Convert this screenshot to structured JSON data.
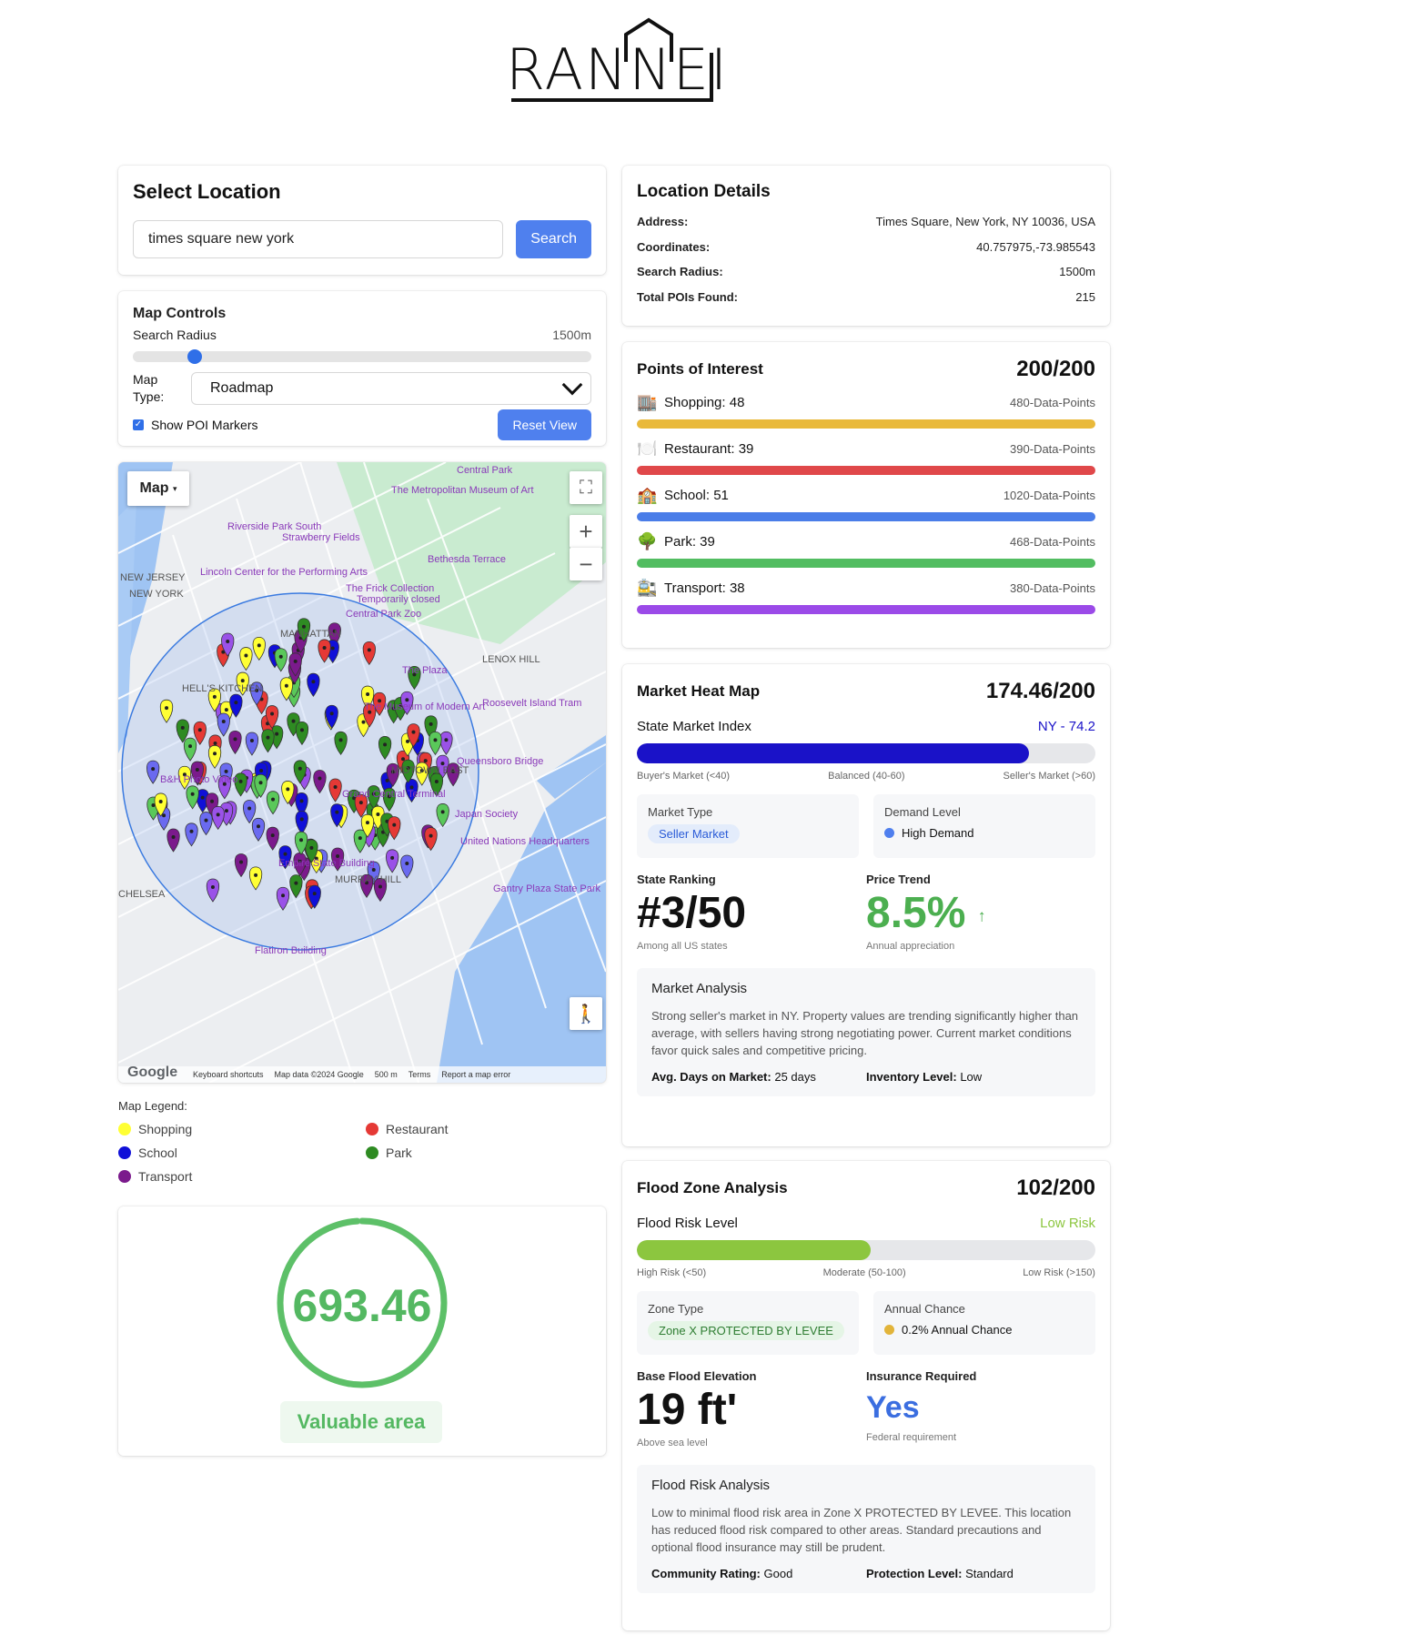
{
  "logo": {
    "text": "RANNEI"
  },
  "select_location": {
    "title": "Select Location",
    "search_value": "times square new york",
    "search_button": "Search"
  },
  "map_controls": {
    "title": "Map Controls",
    "radius_label": "Search Radius",
    "radius_value": "1500m",
    "radius_fraction": 0.12,
    "map_type_label": "Map Type:",
    "map_type_value": "Roadmap",
    "show_poi_label": "Show POI Markers",
    "show_poi_checked": true,
    "reset_button": "Reset View"
  },
  "map": {
    "type_button": "Map",
    "place_labels": [
      "Central Park",
      "The Metropolitan Museum of Art",
      "Riverside Park South",
      "Strawberry Fields",
      "Bethesda Terrace",
      "Lincoln Center for the Performing Arts",
      "The Frick Collection",
      "Temporarily closed",
      "Central Park Zoo",
      "MANHATTAN",
      "LENOX HILL",
      "HELL'S KITCHEN",
      "The Plaza",
      "Roosevelt Island Tram",
      "The Museum of Modern Art",
      "Queensboro Bridge",
      "MIDTOWN EAST",
      "B&H Photo Video",
      "Grand Central Terminal",
      "Japan Society",
      "United Nations Headquarters",
      "Empire State Building",
      "MURRAY HILL",
      "CHELSEA",
      "Gantry Plaza State Park",
      "Flatiron Building",
      "NEW JERSEY",
      "NEW YORK"
    ],
    "footer": {
      "google": "Google",
      "shortcuts": "Keyboard shortcuts",
      "data": "Map data ©2024 Google",
      "scale": "500 m",
      "terms": "Terms",
      "report": "Report a map error"
    }
  },
  "legend": {
    "title": "Map Legend:",
    "items": [
      {
        "label": "Shopping",
        "color": "#ffff33"
      },
      {
        "label": "Restaurant",
        "color": "#e53935"
      },
      {
        "label": "School",
        "color": "#1010d8"
      },
      {
        "label": "Park",
        "color": "#2e8b22"
      },
      {
        "label": "Transport",
        "color": "#7b1a8c"
      }
    ]
  },
  "score": {
    "value": "693.46",
    "fraction": 0.99,
    "label": "Valuable area"
  },
  "location_details": {
    "title": "Location Details",
    "rows": [
      {
        "key": "Address:",
        "value": "Times Square, New York, NY 10036, USA"
      },
      {
        "key": "Coordinates:",
        "value": "40.757975,-73.985543"
      },
      {
        "key": "Search Radius:",
        "value": "1500m"
      },
      {
        "key": "Total POIs Found:",
        "value": "215"
      }
    ]
  },
  "poi": {
    "title": "Points of Interest",
    "score": "200/200",
    "items": [
      {
        "icon": "🏬",
        "icon_name": "shopping-icon",
        "label": "Shopping: 48",
        "points": "480-Data-Points",
        "color": "#e9b93a"
      },
      {
        "icon": "🍽️",
        "icon_name": "restaurant-icon",
        "label": "Restaurant: 39",
        "points": "390-Data-Points",
        "color": "#e0484a"
      },
      {
        "icon": "🏫",
        "icon_name": "school-icon",
        "label": "School: 51",
        "points": "1020-Data-Points",
        "color": "#4a7de8"
      },
      {
        "icon": "🌳",
        "icon_name": "park-icon",
        "label": "Park: 39",
        "points": "468-Data-Points",
        "color": "#52bd61"
      },
      {
        "icon": "🚉",
        "icon_name": "transport-icon",
        "label": "Transport: 38",
        "points": "380-Data-Points",
        "color": "#9b4ae8"
      }
    ]
  },
  "market": {
    "title": "Market Heat Map",
    "score": "174.46/200",
    "index_label": "State Market Index",
    "index_value": "NY - 74.2",
    "index_fraction": 0.855,
    "bar_color": "#1a12c8",
    "scale": [
      "Buyer's Market (<40)",
      "Balanced (40-60)",
      "Seller's Market (>60)"
    ],
    "market_type_label": "Market Type",
    "market_type_value": "Seller Market",
    "demand_label": "Demand Level",
    "demand_value": "High Demand",
    "ranking_label": "State Ranking",
    "ranking_value": "#3/50",
    "ranking_sub": "Among all US states",
    "trend_label": "Price Trend",
    "trend_value": "8.5%",
    "trend_arrow": "↑",
    "trend_sub": "Annual appreciation",
    "analysis_title": "Market Analysis",
    "analysis_text": "Strong seller's market in NY. Property values are trending significantly higher than average, with sellers having strong negotiating power. Current market conditions favor quick sales and competitive pricing.",
    "days_label": "Avg. Days on Market:",
    "days_value": "25 days",
    "inventory_label": "Inventory Level:",
    "inventory_value": "Low"
  },
  "flood": {
    "title": "Flood Zone Analysis",
    "score": "102/200",
    "risk_label": "Flood Risk Level",
    "risk_value": "Low Risk",
    "risk_fraction": 0.51,
    "bar_color": "#8cc63f",
    "scale": [
      "High Risk (<50)",
      "Moderate (50-100)",
      "Low Risk (>150)"
    ],
    "zone_label": "Zone Type",
    "zone_value": "Zone X PROTECTED BY LEVEE",
    "chance_label": "Annual Chance",
    "chance_value": "0.2% Annual Chance",
    "elev_label": "Base Flood Elevation",
    "elev_value": "19 ft'",
    "elev_sub": "Above sea level",
    "ins_label": "Insurance Required",
    "ins_value": "Yes",
    "ins_sub": "Federal requirement",
    "analysis_title": "Flood Risk Analysis",
    "analysis_text": "Low to minimal flood risk area in Zone X PROTECTED BY LEVEE. This location has reduced flood risk compared to other areas. Standard precautions and optional flood insurance may still be prudent.",
    "community_label": "Community Rating:",
    "community_value": "Good",
    "protection_label": "Protection Level:",
    "protection_value": "Standard"
  }
}
